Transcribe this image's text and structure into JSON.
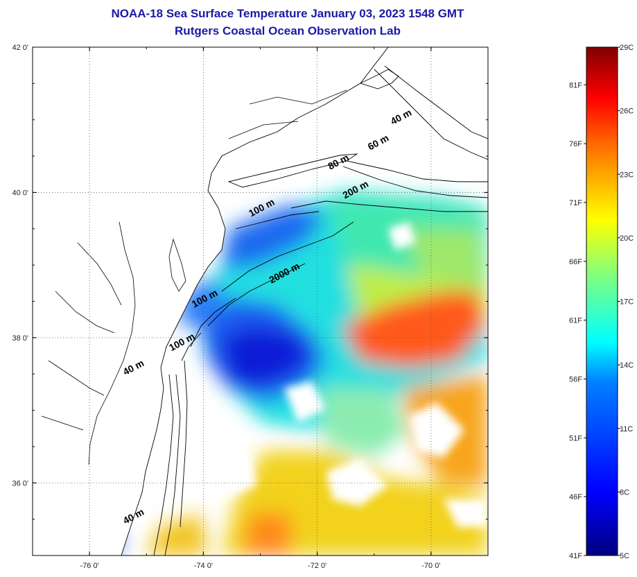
{
  "title": {
    "line1": "NOAA-18 Sea Surface Temperature January 03, 2023 1548 GMT",
    "line2": "Rutgers Coastal Ocean Observation Lab"
  },
  "map": {
    "lon_range": [
      -77,
      -69
    ],
    "lat_range": [
      35,
      42
    ],
    "lon_ticks": [
      {
        "value": -76,
        "label": "-76 0'"
      },
      {
        "value": -74,
        "label": "-74 0'"
      },
      {
        "value": -72,
        "label": "-72 0'"
      },
      {
        "value": -70,
        "label": "-70 0'"
      }
    ],
    "lat_ticks": [
      {
        "value": 42,
        "label": "42 0'"
      },
      {
        "value": 40,
        "label": "40 0'"
      },
      {
        "value": 38,
        "label": "38 0'"
      },
      {
        "value": 36,
        "label": "36 0'"
      }
    ],
    "isobath_labels": [
      {
        "text": "40 m",
        "lon": -70.5,
        "lat": 41.0
      },
      {
        "text": "60 m",
        "lon": -70.9,
        "lat": 40.65
      },
      {
        "text": "80 m",
        "lon": -71.6,
        "lat": 40.38
      },
      {
        "text": "200 m",
        "lon": -71.3,
        "lat": 40.0
      },
      {
        "text": "100 m",
        "lon": -72.95,
        "lat": 39.75
      },
      {
        "text": "2000 m",
        "lon": -72.55,
        "lat": 38.85
      },
      {
        "text": "100 m",
        "lon": -73.95,
        "lat": 38.5
      },
      {
        "text": "100 m",
        "lon": -74.35,
        "lat": 37.9
      },
      {
        "text": "40 m",
        "lon": -75.2,
        "lat": 37.55
      },
      {
        "text": "40 m",
        "lon": -75.2,
        "lat": 35.5
      }
    ]
  },
  "colorbar": {
    "fahrenheit_labels": [
      {
        "label": "81F",
        "value": 81
      },
      {
        "label": "76F",
        "value": 76
      },
      {
        "label": "71F",
        "value": 71
      },
      {
        "label": "66F",
        "value": 66
      },
      {
        "label": "61F",
        "value": 61
      },
      {
        "label": "56F",
        "value": 56
      },
      {
        "label": "51F",
        "value": 51
      },
      {
        "label": "46F",
        "value": 46
      },
      {
        "label": "41F",
        "value": 41
      }
    ],
    "celsius_labels": [
      {
        "label": "29C",
        "value": 29
      },
      {
        "label": "26C",
        "value": 26
      },
      {
        "label": "23C",
        "value": 23
      },
      {
        "label": "20C",
        "value": 20
      },
      {
        "label": "17C",
        "value": 17
      },
      {
        "label": "14C",
        "value": 14
      },
      {
        "label": "11C",
        "value": 11
      },
      {
        "label": "8C",
        "value": 8
      },
      {
        "label": "5C",
        "value": 5
      }
    ],
    "celsius_range": [
      5,
      29
    ],
    "colors": [
      "#00007f",
      "#0000ff",
      "#007fff",
      "#00ffff",
      "#7fff7f",
      "#ffff00",
      "#ff7f00",
      "#ff0000",
      "#7f0000"
    ]
  },
  "colors": {
    "title": "#1a1aa6",
    "land": "#ffffff",
    "coastline": "#000000"
  }
}
